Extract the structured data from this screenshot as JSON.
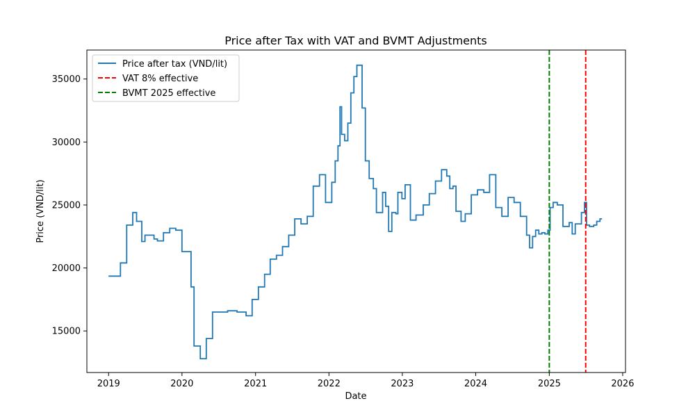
{
  "chart_data": {
    "type": "line",
    "title": "Price after Tax with VAT and BVMT Adjustments",
    "xlabel": "Date",
    "ylabel": "Price (VND/lit)",
    "xlim": [
      "2018-09-15",
      "2026-01-15"
    ],
    "ylim": [
      11700,
      37300
    ],
    "xticks": [
      "2019",
      "2020",
      "2021",
      "2022",
      "2023",
      "2024",
      "2025",
      "2026"
    ],
    "yticks": [
      15000,
      20000,
      25000,
      30000,
      35000
    ],
    "grid": false,
    "legend_position": "top-left",
    "colors": {
      "series": "#1f77b4",
      "vat": "#ff0000",
      "bvmt": "#008000"
    },
    "series": [
      {
        "name": "Price after tax (VND/lit)",
        "style": "solid-step",
        "points": [
          [
            "2019-01-01",
            19350
          ],
          [
            "2019-03-01",
            20400
          ],
          [
            "2019-04-01",
            23400
          ],
          [
            "2019-05-01",
            24400
          ],
          [
            "2019-05-20",
            23700
          ],
          [
            "2019-06-15",
            22100
          ],
          [
            "2019-07-01",
            22600
          ],
          [
            "2019-08-15",
            22300
          ],
          [
            "2019-09-01",
            22150
          ],
          [
            "2019-10-01",
            22800
          ],
          [
            "2019-11-01",
            23150
          ],
          [
            "2019-12-01",
            23000
          ],
          [
            "2020-01-01",
            21300
          ],
          [
            "2020-02-15",
            18500
          ],
          [
            "2020-03-01",
            13800
          ],
          [
            "2020-04-01",
            12800
          ],
          [
            "2020-05-01",
            14400
          ],
          [
            "2020-06-01",
            16500
          ],
          [
            "2020-07-01",
            16500
          ],
          [
            "2020-08-15",
            16600
          ],
          [
            "2020-10-01",
            16500
          ],
          [
            "2020-11-15",
            16200
          ],
          [
            "2020-12-15",
            17500
          ],
          [
            "2021-01-15",
            18500
          ],
          [
            "2021-02-15",
            19500
          ],
          [
            "2021-03-15",
            20700
          ],
          [
            "2021-04-15",
            21000
          ],
          [
            "2021-05-15",
            21700
          ],
          [
            "2021-06-15",
            22600
          ],
          [
            "2021-07-15",
            23900
          ],
          [
            "2021-08-15",
            23500
          ],
          [
            "2021-09-15",
            24100
          ],
          [
            "2021-10-15",
            26500
          ],
          [
            "2021-11-15",
            27400
          ],
          [
            "2021-12-15",
            25200
          ],
          [
            "2022-01-15",
            26800
          ],
          [
            "2022-02-01",
            28500
          ],
          [
            "2022-02-15",
            29700
          ],
          [
            "2022-02-25",
            32800
          ],
          [
            "2022-03-05",
            30600
          ],
          [
            "2022-03-20",
            30100
          ],
          [
            "2022-04-05",
            31500
          ],
          [
            "2022-04-20",
            33900
          ],
          [
            "2022-05-05",
            35200
          ],
          [
            "2022-05-20",
            36100
          ],
          [
            "2022-06-15",
            32700
          ],
          [
            "2022-07-01",
            28500
          ],
          [
            "2022-07-20",
            27100
          ],
          [
            "2022-08-10",
            26300
          ],
          [
            "2022-08-25",
            24400
          ],
          [
            "2022-09-10",
            24400
          ],
          [
            "2022-09-25",
            26000
          ],
          [
            "2022-10-10",
            24900
          ],
          [
            "2022-10-25",
            22900
          ],
          [
            "2022-11-10",
            24400
          ],
          [
            "2022-11-30",
            24300
          ],
          [
            "2022-12-10",
            26000
          ],
          [
            "2022-12-30",
            25500
          ],
          [
            "2023-01-15",
            26600
          ],
          [
            "2023-02-10",
            23800
          ],
          [
            "2023-03-10",
            24200
          ],
          [
            "2023-04-15",
            25000
          ],
          [
            "2023-05-15",
            25900
          ],
          [
            "2023-06-15",
            26900
          ],
          [
            "2023-07-15",
            27800
          ],
          [
            "2023-08-10",
            27300
          ],
          [
            "2023-08-25",
            26300
          ],
          [
            "2023-09-10",
            26500
          ],
          [
            "2023-09-25",
            24500
          ],
          [
            "2023-10-20",
            23700
          ],
          [
            "2023-11-10",
            24300
          ],
          [
            "2023-12-10",
            25800
          ],
          [
            "2024-01-10",
            26200
          ],
          [
            "2024-02-10",
            26000
          ],
          [
            "2024-03-10",
            27400
          ],
          [
            "2024-04-10",
            24800
          ],
          [
            "2024-05-10",
            24100
          ],
          [
            "2024-06-10",
            25600
          ],
          [
            "2024-07-10",
            25200
          ],
          [
            "2024-08-10",
            24100
          ],
          [
            "2024-09-10",
            22600
          ],
          [
            "2024-09-25",
            21600
          ],
          [
            "2024-10-10",
            22500
          ],
          [
            "2024-10-25",
            23000
          ],
          [
            "2024-11-10",
            22700
          ],
          [
            "2024-11-25",
            22800
          ],
          [
            "2024-12-10",
            22700
          ],
          [
            "2024-12-25",
            23000
          ],
          [
            "2025-01-05",
            24800
          ],
          [
            "2025-01-20",
            25200
          ],
          [
            "2025-02-10",
            25000
          ],
          [
            "2025-03-10",
            23300
          ],
          [
            "2025-04-10",
            23600
          ],
          [
            "2025-04-25",
            22700
          ],
          [
            "2025-05-10",
            23500
          ],
          [
            "2025-06-10",
            24400
          ],
          [
            "2025-06-25",
            25200
          ],
          [
            "2025-07-05",
            23400
          ],
          [
            "2025-07-20",
            23300
          ],
          [
            "2025-08-10",
            23400
          ],
          [
            "2025-08-25",
            23700
          ],
          [
            "2025-09-10",
            23900
          ],
          [
            "2025-09-20",
            23900
          ]
        ]
      },
      {
        "name": "VAT 8% effective",
        "style": "dashed-vertical",
        "x": "2025-07-01"
      },
      {
        "name": "BVMT 2025 effective",
        "style": "dashed-vertical",
        "x": "2025-01-01"
      }
    ]
  }
}
